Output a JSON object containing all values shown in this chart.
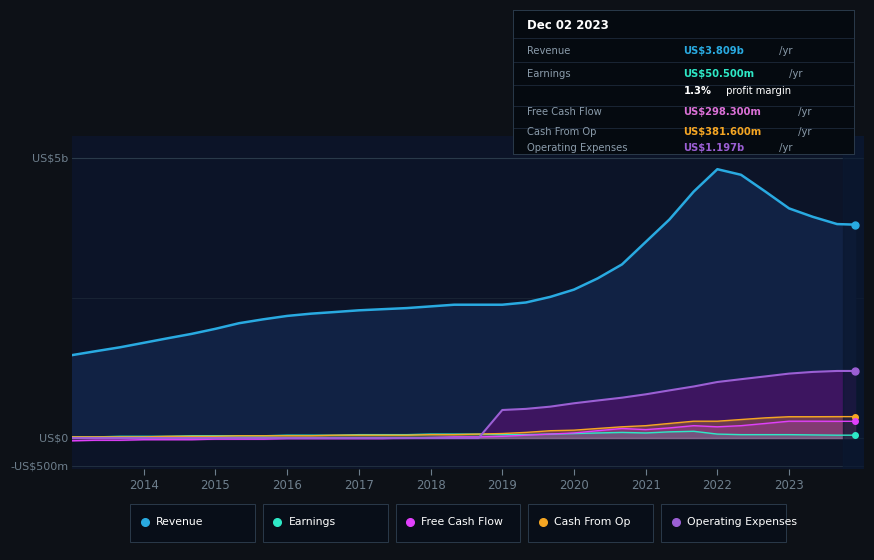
{
  "bg_color": "#0d1117",
  "plot_bg_color": "#0c1428",
  "ylabel_5b": "US$5b",
  "ylabel_0": "US$0",
  "ylabel_neg500m": "-US$500m",
  "x_years": [
    2013.0,
    2013.33,
    2013.67,
    2014.0,
    2014.33,
    2014.67,
    2015.0,
    2015.33,
    2015.67,
    2016.0,
    2016.33,
    2016.67,
    2017.0,
    2017.33,
    2017.67,
    2018.0,
    2018.33,
    2018.67,
    2019.0,
    2019.33,
    2019.67,
    2020.0,
    2020.33,
    2020.67,
    2021.0,
    2021.33,
    2021.67,
    2022.0,
    2022.33,
    2022.67,
    2023.0,
    2023.33,
    2023.67,
    2023.92
  ],
  "revenue": [
    1.48,
    1.55,
    1.62,
    1.7,
    1.78,
    1.86,
    1.95,
    2.05,
    2.12,
    2.18,
    2.22,
    2.25,
    2.28,
    2.3,
    2.32,
    2.35,
    2.38,
    2.38,
    2.38,
    2.42,
    2.52,
    2.65,
    2.85,
    3.1,
    3.5,
    3.9,
    4.4,
    4.8,
    4.7,
    4.4,
    4.1,
    3.95,
    3.82,
    3.81
  ],
  "earnings": [
    0.02,
    0.02,
    0.03,
    0.03,
    0.03,
    0.04,
    0.04,
    0.04,
    0.04,
    0.05,
    0.05,
    0.05,
    0.06,
    0.06,
    0.06,
    0.07,
    0.07,
    0.07,
    0.06,
    0.06,
    0.07,
    0.08,
    0.09,
    0.1,
    0.09,
    0.11,
    0.12,
    0.07,
    0.06,
    0.06,
    0.06,
    0.055,
    0.0505,
    0.0505
  ],
  "free_cash_flow": [
    -0.05,
    -0.04,
    -0.04,
    -0.03,
    -0.03,
    -0.03,
    -0.02,
    -0.02,
    -0.02,
    -0.01,
    -0.01,
    -0.01,
    -0.01,
    -0.01,
    0.0,
    0.01,
    0.02,
    0.02,
    0.03,
    0.05,
    0.07,
    0.09,
    0.13,
    0.17,
    0.15,
    0.18,
    0.22,
    0.2,
    0.22,
    0.26,
    0.3,
    0.3,
    0.2983,
    0.2983
  ],
  "cash_from_op": [
    0.02,
    0.02,
    0.02,
    0.02,
    0.03,
    0.03,
    0.03,
    0.04,
    0.04,
    0.04,
    0.04,
    0.05,
    0.05,
    0.05,
    0.05,
    0.06,
    0.06,
    0.07,
    0.08,
    0.1,
    0.13,
    0.14,
    0.17,
    0.2,
    0.22,
    0.26,
    0.3,
    0.3,
    0.33,
    0.36,
    0.38,
    0.38,
    0.3816,
    0.3816
  ],
  "operating_expenses": [
    0.0,
    0.0,
    0.0,
    0.0,
    0.0,
    0.0,
    0.0,
    0.0,
    0.0,
    0.0,
    0.0,
    0.0,
    0.0,
    0.0,
    0.0,
    0.0,
    0.0,
    0.0,
    0.5,
    0.52,
    0.56,
    0.62,
    0.67,
    0.72,
    0.78,
    0.85,
    0.92,
    1.0,
    1.05,
    1.1,
    1.15,
    1.18,
    1.197,
    1.197
  ],
  "revenue_color": "#29aae1",
  "earnings_color": "#2ee8c6",
  "fcf_color": "#e040fb",
  "cashop_color": "#f5a623",
  "opex_color": "#9b5fd4",
  "revenue_fill": "#112244",
  "opex_fill": "#3d1560",
  "grid_color": "#1e2a3a",
  "tick_color": "#6e7f8d",
  "label_color": "#6e7f8d",
  "tooltip_revenue_color": "#29aae1",
  "tooltip_earnings_color": "#2ee8c6",
  "tooltip_fcf_color": "#da70d6",
  "tooltip_cashop_color": "#f5a623",
  "tooltip_opex_color": "#9b5fd4",
  "x_tick_years": [
    2014,
    2015,
    2016,
    2017,
    2018,
    2019,
    2020,
    2021,
    2022,
    2023
  ],
  "legend_items": [
    "Revenue",
    "Earnings",
    "Free Cash Flow",
    "Cash From Op",
    "Operating Expenses"
  ],
  "legend_colors": [
    "#29aae1",
    "#2ee8c6",
    "#e040fb",
    "#f5a623",
    "#9b5fd4"
  ]
}
